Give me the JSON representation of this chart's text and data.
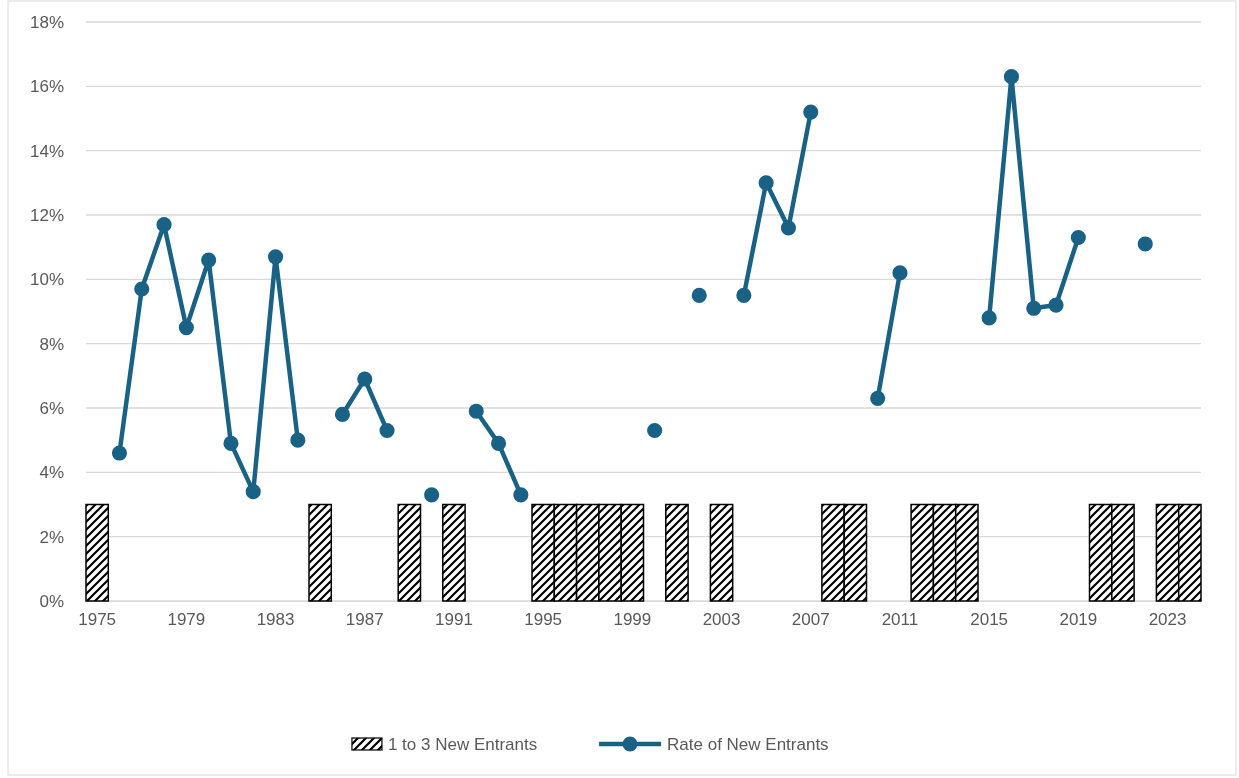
{
  "chart_data": {
    "type": "bar",
    "categories": [
      "1975",
      null,
      null,
      null,
      "1979",
      null,
      null,
      null,
      "1983",
      null,
      null,
      null,
      "1987",
      null,
      null,
      null,
      "1991",
      null,
      null,
      null,
      "1995",
      null,
      null,
      null,
      "1999",
      null,
      null,
      null,
      "2003",
      null,
      null,
      null,
      "2007",
      null,
      null,
      null,
      "2011",
      null,
      null,
      null,
      "2015",
      null,
      null,
      null,
      "2019",
      null,
      null,
      null,
      "2023",
      null
    ],
    "series": [
      {
        "name": "1 to 3 New Entrants",
        "color": "#000000",
        "values": [
          3,
          null,
          null,
          null,
          null,
          null,
          null,
          null,
          null,
          null,
          3,
          null,
          null,
          null,
          3,
          null,
          3,
          null,
          null,
          null,
          3,
          3,
          3,
          3,
          3,
          null,
          3,
          null,
          3,
          null,
          null,
          null,
          null,
          3,
          3,
          null,
          null,
          3,
          3,
          3,
          null,
          null,
          null,
          null,
          null,
          3,
          3,
          null,
          3,
          3
        ]
      },
      {
        "name": "Rate of New Entrants",
        "type": "line",
        "color": "#1a6285",
        "marker": "circle",
        "values": [
          null,
          4.6,
          9.7,
          11.7,
          8.5,
          10.6,
          4.9,
          3.4,
          10.7,
          5.0,
          null,
          5.8,
          6.9,
          5.3,
          null,
          3.3,
          null,
          5.9,
          4.9,
          3.3,
          null,
          null,
          null,
          null,
          null,
          5.3,
          null,
          9.5,
          null,
          9.5,
          13.0,
          11.6,
          15.2,
          null,
          null,
          6.3,
          10.2,
          null,
          null,
          null,
          8.8,
          16.3,
          9.1,
          9.2,
          11.3,
          null,
          null,
          11.1,
          null,
          null
        ]
      }
    ],
    "ylim": [
      0,
      18
    ],
    "yticks": [
      {
        "value": 0,
        "label": "0%"
      },
      {
        "value": 2,
        "label": "2%"
      },
      {
        "value": 4,
        "label": "4%"
      },
      {
        "value": 6,
        "label": "6%"
      },
      {
        "value": 8,
        "label": "8%"
      },
      {
        "value": 10,
        "label": "10%"
      },
      {
        "value": 12,
        "label": "12%"
      },
      {
        "value": 14,
        "label": "14%"
      },
      {
        "value": 16,
        "label": "16%"
      },
      {
        "value": 18,
        "label": "18%"
      }
    ],
    "grid": "y",
    "legend": "bottom"
  }
}
